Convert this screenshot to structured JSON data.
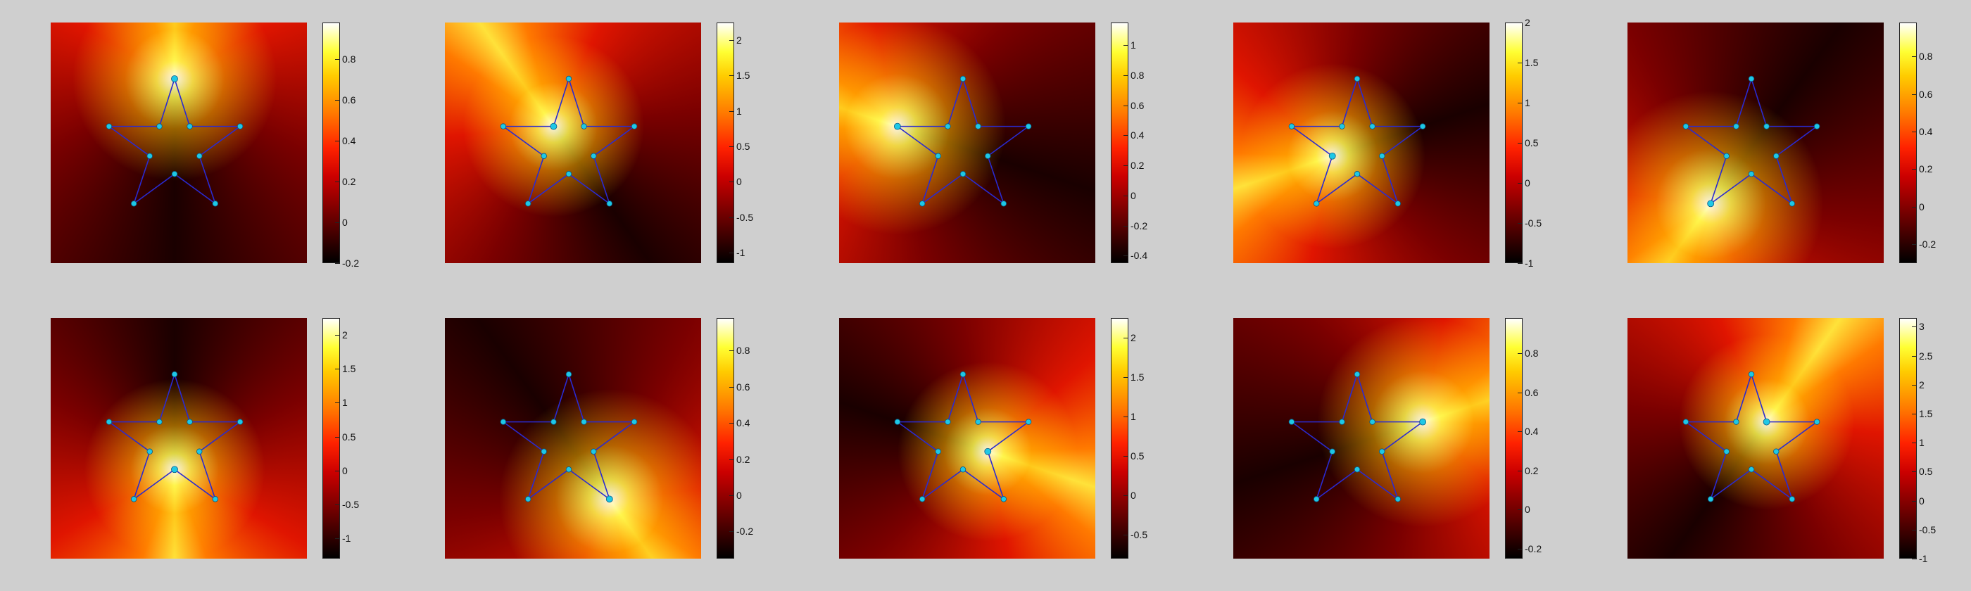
{
  "chart_data": {
    "type": "heatmap",
    "layout": {
      "rows": 2,
      "cols": 5
    },
    "colormap": "hot",
    "background_color": "#cfcfcf",
    "node_color": "#1ec8e6",
    "edge_color": "#2a2ad0",
    "star_nodes": [
      {
        "x": 0.0,
        "y": 1.0
      },
      {
        "x": 0.95,
        "y": 0.31
      },
      {
        "x": 0.59,
        "y": -0.81
      },
      {
        "x": -0.59,
        "y": -0.81
      },
      {
        "x": -0.95,
        "y": 0.31
      },
      {
        "x": 0.22,
        "y": 0.31
      },
      {
        "x": 0.36,
        "y": -0.12
      },
      {
        "x": 0.0,
        "y": -0.38
      },
      {
        "x": -0.36,
        "y": -0.12
      },
      {
        "x": -0.22,
        "y": 0.31
      }
    ],
    "star_edges": [
      [
        0,
        5
      ],
      [
        5,
        1
      ],
      [
        1,
        6
      ],
      [
        6,
        2
      ],
      [
        2,
        7
      ],
      [
        7,
        3
      ],
      [
        3,
        8
      ],
      [
        8,
        4
      ],
      [
        4,
        9
      ],
      [
        9,
        0
      ]
    ],
    "panels": [
      {
        "source_node": 0,
        "cbar": {
          "min": -0.2,
          "max": 0.98,
          "ticks": [
            "0.8",
            "0.6",
            "0.4",
            "0.2",
            "0",
            "-0.2"
          ],
          "tick_values": [
            0.8,
            0.6,
            0.4,
            0.2,
            0,
            -0.2
          ]
        }
      },
      {
        "source_node": 9,
        "cbar": {
          "min": -1.15,
          "max": 2.25,
          "ticks": [
            "2",
            "1.5",
            "1",
            "0.5",
            "0",
            "-0.5",
            "-1"
          ],
          "tick_values": [
            2,
            1.5,
            1,
            0.5,
            0,
            -0.5,
            -1
          ]
        }
      },
      {
        "source_node": 4,
        "cbar": {
          "min": -0.45,
          "max": 1.15,
          "ticks": [
            "1",
            "0.8",
            "0.6",
            "0.4",
            "0.2",
            "0",
            "-0.2",
            "-0.4"
          ],
          "tick_values": [
            1,
            0.8,
            0.6,
            0.4,
            0.2,
            0,
            -0.2,
            -0.4
          ]
        }
      },
      {
        "source_node": 8,
        "cbar": {
          "min": -1.0,
          "max": 2.0,
          "ticks": [
            "2",
            "1.5",
            "1",
            "0.5",
            "0",
            "-0.5",
            "-1"
          ],
          "tick_values": [
            2,
            1.5,
            1,
            0.5,
            0,
            -0.5,
            -1
          ]
        }
      },
      {
        "source_node": 3,
        "cbar": {
          "min": -0.3,
          "max": 0.98,
          "ticks": [
            "0.8",
            "0.6",
            "0.4",
            "0.2",
            "0",
            "-0.2"
          ],
          "tick_values": [
            0.8,
            0.6,
            0.4,
            0.2,
            0,
            -0.2
          ]
        }
      },
      {
        "source_node": 7,
        "cbar": {
          "min": -1.3,
          "max": 2.25,
          "ticks": [
            "2",
            "1.5",
            "1",
            "0.5",
            "0",
            "-0.5",
            "-1"
          ],
          "tick_values": [
            2,
            1.5,
            1,
            0.5,
            0,
            -0.5,
            -1
          ]
        }
      },
      {
        "source_node": 2,
        "cbar": {
          "min": -0.35,
          "max": 0.98,
          "ticks": [
            "0.8",
            "0.6",
            "0.4",
            "0.2",
            "0",
            "-0.2"
          ],
          "tick_values": [
            0.8,
            0.6,
            0.4,
            0.2,
            0,
            -0.2
          ]
        }
      },
      {
        "source_node": 6,
        "cbar": {
          "min": -0.8,
          "max": 2.25,
          "ticks": [
            "2",
            "1.5",
            "1",
            "0.5",
            "0",
            "-0.5"
          ],
          "tick_values": [
            2,
            1.5,
            1,
            0.5,
            0,
            -0.5
          ]
        }
      },
      {
        "source_node": 1,
        "cbar": {
          "min": -0.25,
          "max": 0.98,
          "ticks": [
            "0.8",
            "0.6",
            "0.4",
            "0.2",
            "0",
            "-0.2"
          ],
          "tick_values": [
            0.8,
            0.6,
            0.4,
            0.2,
            0,
            -0.2
          ]
        }
      },
      {
        "source_node": 5,
        "cbar": {
          "min": -1.0,
          "max": 3.15,
          "ticks": [
            "3",
            "2.5",
            "2",
            "1.5",
            "1",
            "0.5",
            "0",
            "-0.5",
            "-1"
          ],
          "tick_values": [
            3,
            2.5,
            2,
            1.5,
            1,
            0.5,
            0,
            -0.5,
            -1
          ]
        }
      }
    ]
  }
}
